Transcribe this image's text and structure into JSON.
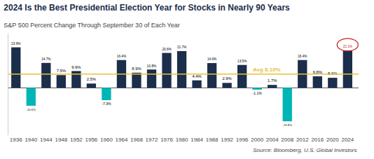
{
  "chart_data": {
    "type": "bar",
    "title": "2024 Is the Best Presidential Election Year for Stocks in Nearly 90 Years",
    "subtitle": "S&P 500 Percent Change Through September 30 of Each Year",
    "source": "Source: Bloomberg, U.S. Global Investors",
    "categories": [
      "1936",
      "1940",
      "1944",
      "1948",
      "1952",
      "1956",
      "1960",
      "1964",
      "1968",
      "1972",
      "1976",
      "1980",
      "1984",
      "1988",
      "1992",
      "1996",
      "2000",
      "2004",
      "2008",
      "2012",
      "2016",
      "2020",
      "2024"
    ],
    "values": [
      23.9,
      -10.6,
      14.7,
      7.5,
      9.9,
      2.5,
      -7.3,
      16.4,
      8.9,
      10.8,
      20.6,
      21.7,
      4.4,
      14.6,
      2.9,
      13.5,
      -1.1,
      1.7,
      -19.8,
      16.4,
      6.8,
      5.9,
      22.1
    ],
    "value_labels": [
      "23.9%",
      "-10.6%",
      "14.7%",
      "7.5%",
      "9.9%",
      "2.5%",
      "-7.3%",
      "16.4%",
      "8.9%",
      "10.8%",
      "20.6%",
      "21.7%",
      "4.4%",
      "14.6%",
      "2.9%",
      "13.5%",
      "-1.1%",
      "1.7%",
      "-19.8%",
      "16.4%",
      "6.8%",
      "5.9%",
      "22.1%"
    ],
    "colors": [
      "#1b2e4b",
      "#00b5b5",
      "#1b2e4b",
      "#1b2e4b",
      "#1b2e4b",
      "#1b2e4b",
      "#00b5b5",
      "#1b2e4b",
      "#1b2e4b",
      "#1b2e4b",
      "#1b2e4b",
      "#1b2e4b",
      "#1b2e4b",
      "#1b2e4b",
      "#1b2e4b",
      "#1b2e4b",
      "#00b5b5",
      "#1b2e4b",
      "#00b5b5",
      "#1b2e4b",
      "#1b2e4b",
      "#1b2e4b",
      "#1b2e4b"
    ],
    "ylim": [
      -28,
      32
    ],
    "grid": false,
    "data_labels": true,
    "tick_labels": "x",
    "annotations": [
      {
        "text": "Avg 8.10%",
        "y": 8.1,
        "color": "#e8c040"
      }
    ],
    "highlight": {
      "category": "2024",
      "color": "#cc2222"
    }
  }
}
